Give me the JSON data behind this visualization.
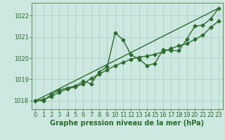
{
  "background_color": "#cce8e0",
  "plot_bg_color": "#cce8e0",
  "grid_color": "#b0d4cc",
  "line_color": "#2d6a2d",
  "xlabel": "Graphe pression niveau de la mer (hPa)",
  "ylim": [
    1017.6,
    1022.6
  ],
  "xlim": [
    -0.5,
    23.5
  ],
  "yticks": [
    1018,
    1019,
    1020,
    1021,
    1022
  ],
  "xticks": [
    0,
    1,
    2,
    3,
    4,
    5,
    6,
    7,
    8,
    9,
    10,
    11,
    12,
    13,
    14,
    15,
    16,
    17,
    18,
    19,
    20,
    21,
    22,
    23
  ],
  "series1_y": [
    1018.0,
    1018.0,
    1018.3,
    1018.5,
    1018.6,
    1018.7,
    1018.9,
    1018.8,
    1019.35,
    1019.6,
    1021.2,
    1020.85,
    1020.15,
    1019.95,
    1019.65,
    1019.75,
    1020.4,
    1020.35,
    1020.35,
    1020.9,
    1021.5,
    1021.55,
    1021.85,
    1022.35
  ],
  "series2_y": [
    1018.0,
    1018.05,
    1018.2,
    1018.4,
    1018.55,
    1018.65,
    1018.8,
    1019.05,
    1019.25,
    1019.45,
    1019.65,
    1019.8,
    1019.95,
    1020.05,
    1020.1,
    1020.18,
    1020.3,
    1020.45,
    1020.58,
    1020.68,
    1020.88,
    1021.08,
    1021.45,
    1021.75
  ],
  "series3_y": [
    1018.0,
    1022.35
  ],
  "marker": "D",
  "markersize": 2.5,
  "linewidth": 1.0,
  "xlabel_fontsize": 7,
  "tick_fontsize": 6,
  "line_color2": "#2d6a2d"
}
